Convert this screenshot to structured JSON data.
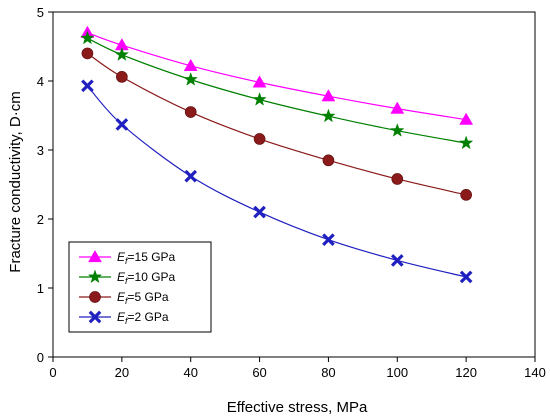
{
  "chart_data": {
    "type": "line",
    "title": "",
    "xlabel": "Effective stress, MPa",
    "ylabel": "Fracture conductivity, D·cm",
    "xlim": [
      0,
      140
    ],
    "ylim": [
      0,
      5
    ],
    "xticks": [
      0,
      20,
      40,
      60,
      80,
      100,
      120,
      140
    ],
    "yticks": [
      0,
      1,
      2,
      3,
      4,
      5
    ],
    "x": [
      10,
      20,
      40,
      60,
      80,
      100,
      120
    ],
    "grid": false,
    "legend_position": "bottom-left",
    "series": [
      {
        "name_var": "E",
        "name_sub": "f",
        "name_rest": "=15 GPa",
        "marker": "triangle",
        "color": "#ff00ff",
        "values": [
          4.7,
          4.52,
          4.22,
          3.98,
          3.78,
          3.6,
          3.44
        ]
      },
      {
        "name_var": "E",
        "name_sub": "f",
        "name_rest": "=10 GPa",
        "marker": "star",
        "color": "#008000",
        "values": [
          4.62,
          4.38,
          4.02,
          3.73,
          3.49,
          3.28,
          3.1
        ]
      },
      {
        "name_var": "E",
        "name_sub": "f",
        "name_rest": "=5 GPa",
        "marker": "circle",
        "color": "#8b1a1a",
        "values": [
          4.4,
          4.06,
          3.55,
          3.16,
          2.85,
          2.58,
          2.35
        ]
      },
      {
        "name_var": "E",
        "name_sub": "f",
        "name_rest": "=2 GPa",
        "marker": "x",
        "color": "#2020c0",
        "values": [
          3.93,
          3.37,
          2.62,
          2.1,
          1.7,
          1.4,
          1.16
        ]
      }
    ]
  }
}
